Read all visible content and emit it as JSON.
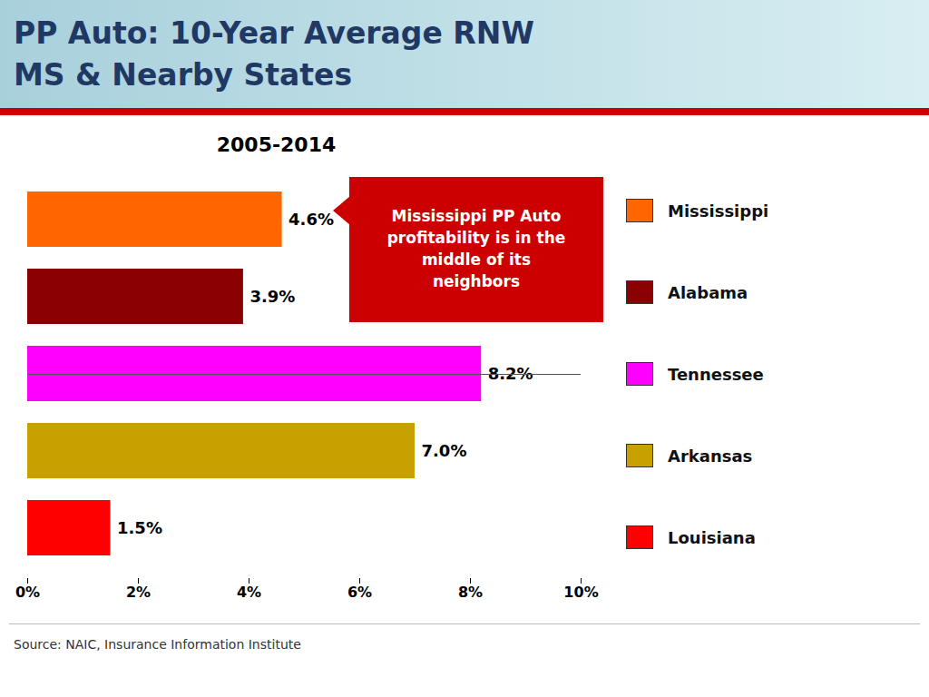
{
  "chart_data": {
    "type": "bar",
    "orientation": "horizontal",
    "title": "PP Auto: 10-Year Average RNW\nMS & Nearby States",
    "subtitle": "2005-2014",
    "categories": [
      "Mississippi",
      "Alabama",
      "Tennessee",
      "Arkansas",
      "Louisiana"
    ],
    "values": [
      4.6,
      3.9,
      8.2,
      7.0,
      1.5
    ],
    "value_labels": [
      "4.6%",
      "3.9%",
      "8.2%",
      "7.0%",
      "1.5%"
    ],
    "colors": [
      "#FF6600",
      "#8B0000",
      "#FF00FF",
      "#C8A000",
      "#FF0000"
    ],
    "xlim": [
      0,
      10
    ],
    "xticks": [
      {
        "value": 0,
        "label": "0%"
      },
      {
        "value": 2,
        "label": "2%"
      },
      {
        "value": 4,
        "label": "4%"
      },
      {
        "value": 6,
        "label": "6%"
      },
      {
        "value": 8,
        "label": "8%"
      },
      {
        "value": 10,
        "label": "10%"
      }
    ],
    "grid": false,
    "legend": "right",
    "data_labels": true,
    "tick_labels": "x",
    "annotations": [
      "Mississippi PP Auto\nprofitability is in the\nmiddle of its\nneighbors"
    ],
    "source": "Source: NAIC, Insurance Information Institute"
  }
}
